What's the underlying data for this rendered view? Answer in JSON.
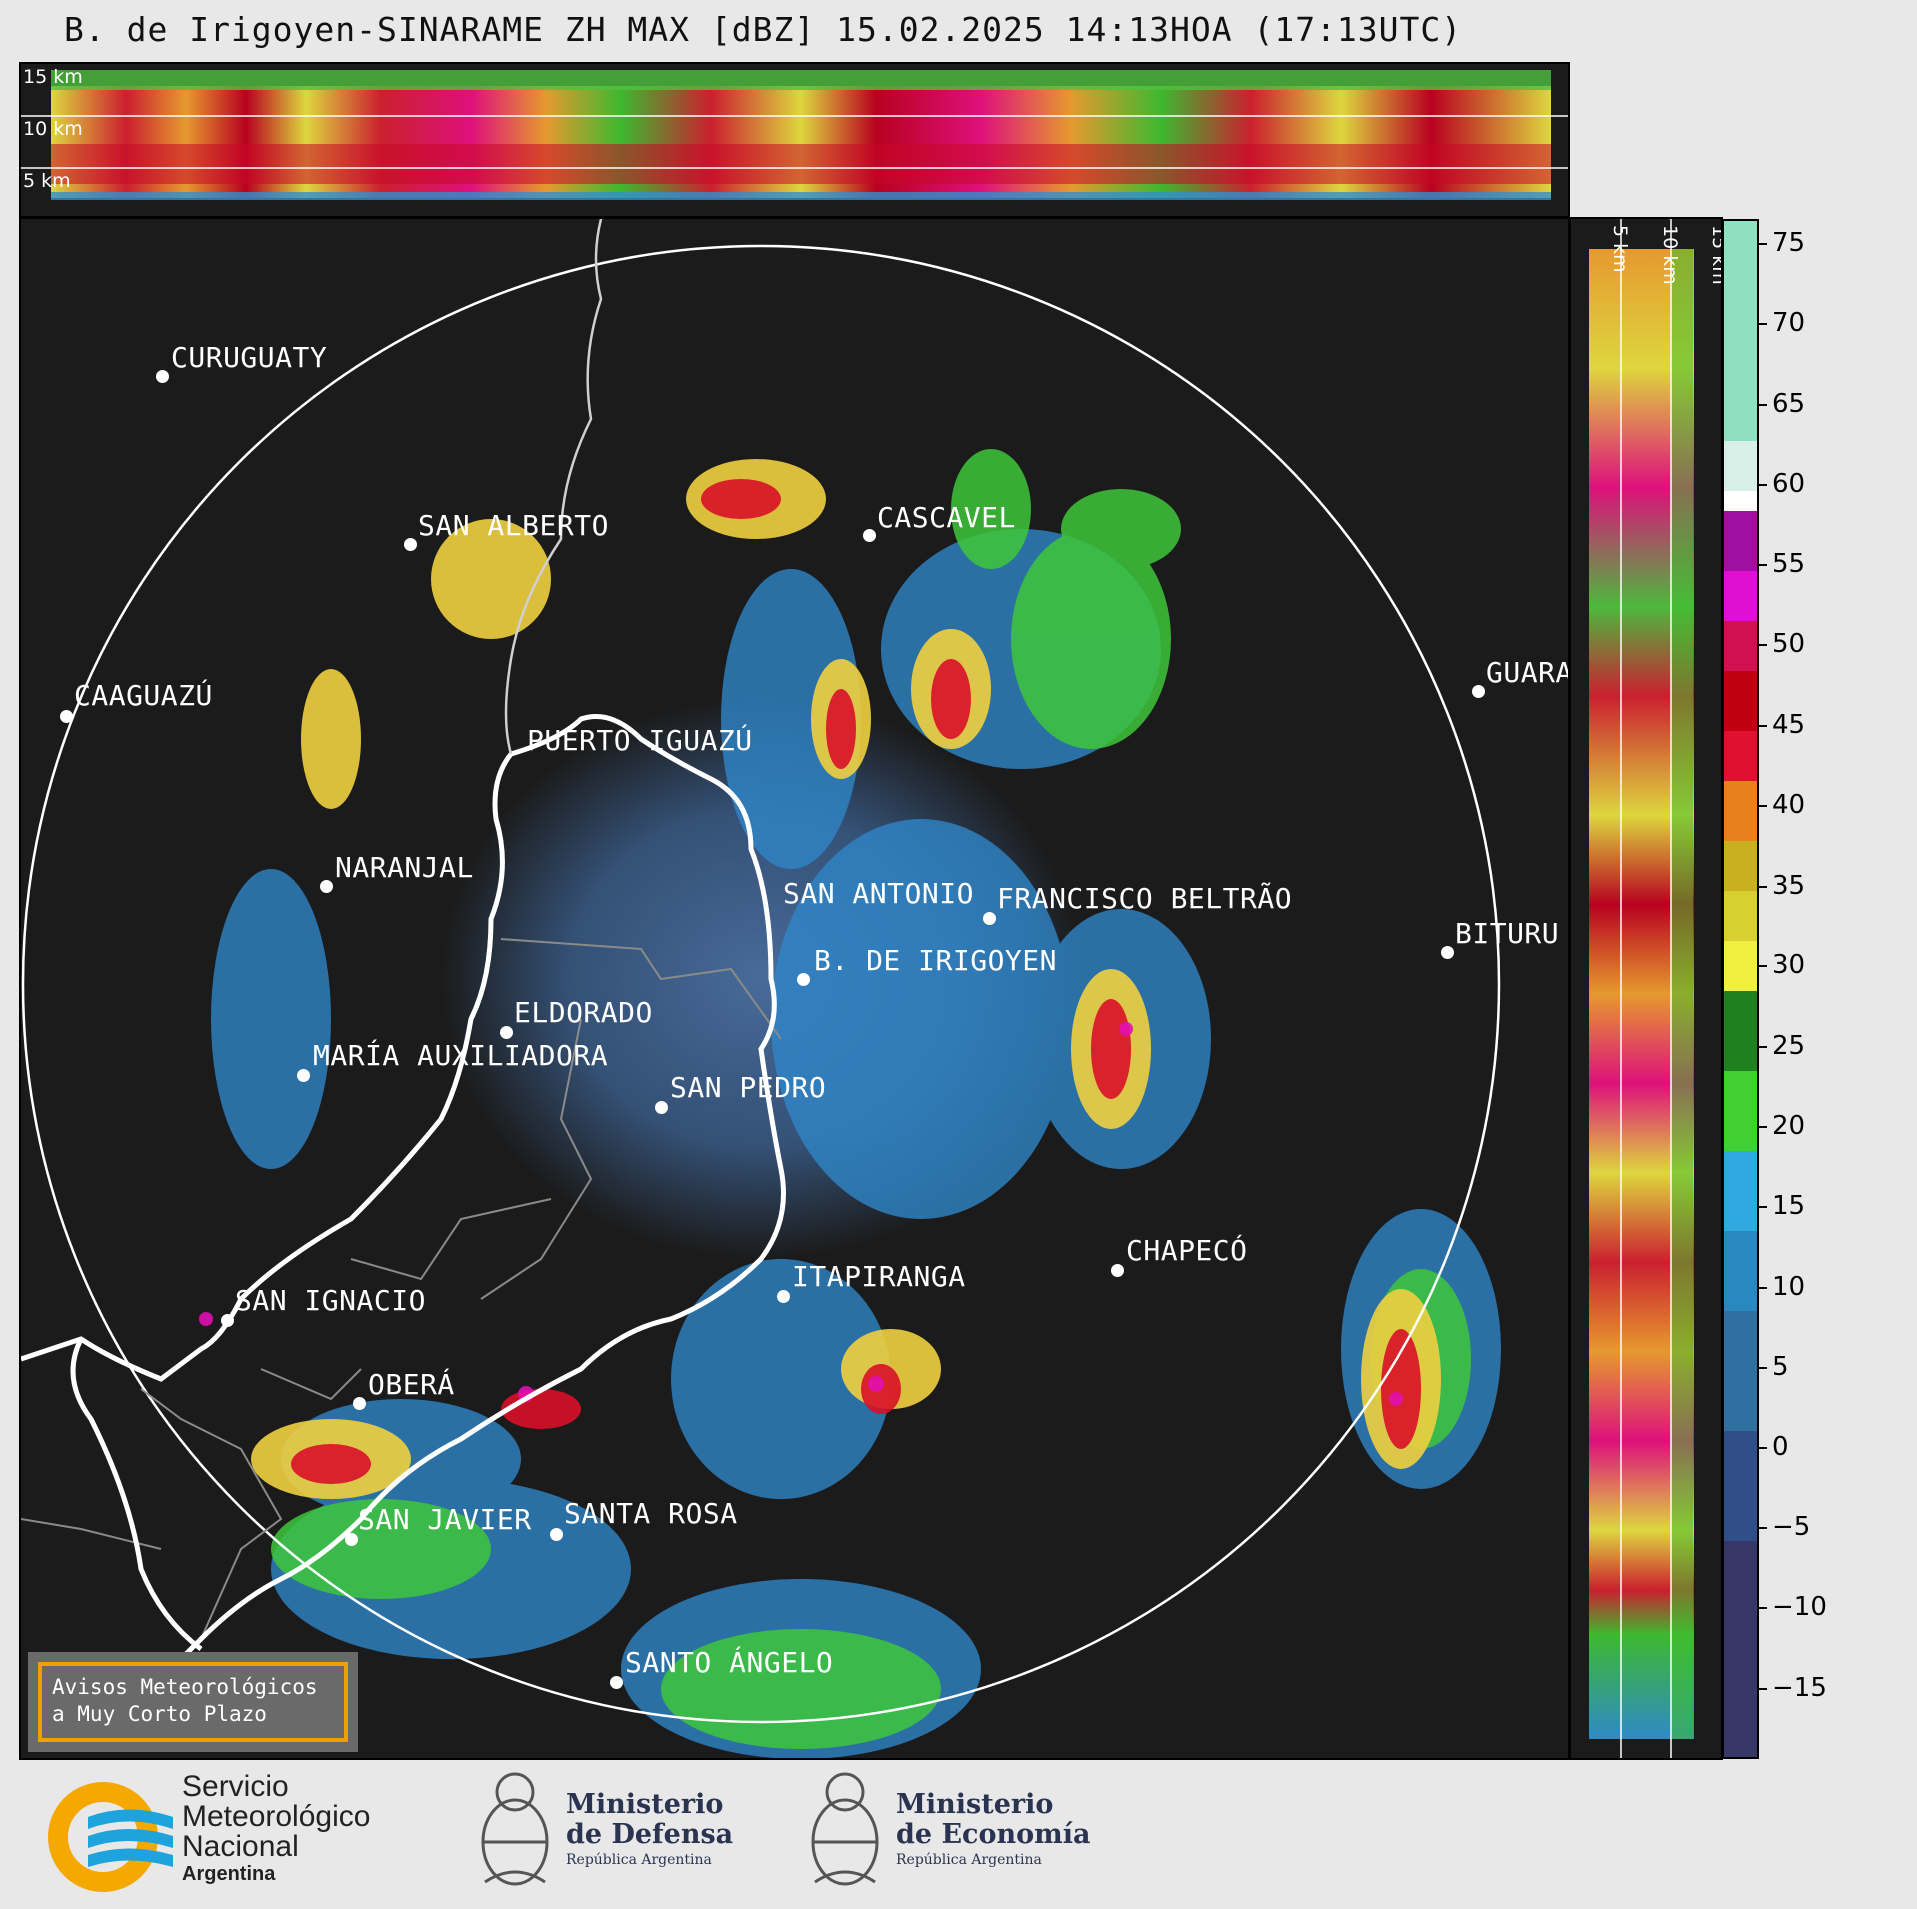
{
  "title": "B. de Irigoyen-SINARAME ZH MAX [dBZ] 15.02.2025 14:13HOA (17:13UTC)",
  "top_section": {
    "km_labels": [
      "15 km",
      "10 km",
      "5 km"
    ]
  },
  "side_section": {
    "km_labels": [
      "5 km",
      "10 km",
      "15 km"
    ]
  },
  "cities": [
    {
      "name": "CURUGUATY"
    },
    {
      "name": "SAN ALBERTO"
    },
    {
      "name": "CAAGUAZÚ"
    },
    {
      "name": "PUERTO IGUAZÚ"
    },
    {
      "name": "CASCAVEL"
    },
    {
      "name": "GUARA"
    },
    {
      "name": "NARANJAL"
    },
    {
      "name": "SAN ANTONIO"
    },
    {
      "name": "FRANCISCO BELTRÃO"
    },
    {
      "name": "BITURU"
    },
    {
      "name": "B. DE IRIGOYEN"
    },
    {
      "name": "ELDORADO"
    },
    {
      "name": "MARÍA AUXILIADORA"
    },
    {
      "name": "SAN PEDRO"
    },
    {
      "name": "CHAPECÓ"
    },
    {
      "name": "ITAPIRANGA"
    },
    {
      "name": "SAN IGNACIO"
    },
    {
      "name": "OBERÁ"
    },
    {
      "name": "SAN JAVIER"
    },
    {
      "name": "SANTA ROSA"
    },
    {
      "name": "SANTO ÁNGELO"
    }
  ],
  "colorbar": {
    "unit": "dBZ",
    "ticks": [
      "75",
      "70",
      "65",
      "60",
      "55",
      "50",
      "45",
      "40",
      "35",
      "30",
      "25",
      "20",
      "15",
      "10",
      "5",
      "0",
      "−5",
      "−10",
      "−15"
    ]
  },
  "warning_box": {
    "line1": "Avisos Meteorológicos",
    "line2": "a Muy Corto Plazo"
  },
  "logos": {
    "smn_line1": "Servicio",
    "smn_line2": "Meteorológico",
    "smn_line3": "Nacional",
    "smn_line4": "Argentina",
    "defensa_line1": "Ministerio",
    "defensa_line2": "de Defensa",
    "defensa_line3": "República Argentina",
    "economia_line1": "Ministerio",
    "economia_line2": "de Economía",
    "economia_line3": "República Argentina"
  },
  "colors": {
    "background": "#1b1b1b",
    "range_ring": "#ffffff",
    "border_line": "#ffffff",
    "warning_border": "#f0a000",
    "smn_orange": "#f5a800",
    "smn_blue": "#1fa3dc"
  }
}
